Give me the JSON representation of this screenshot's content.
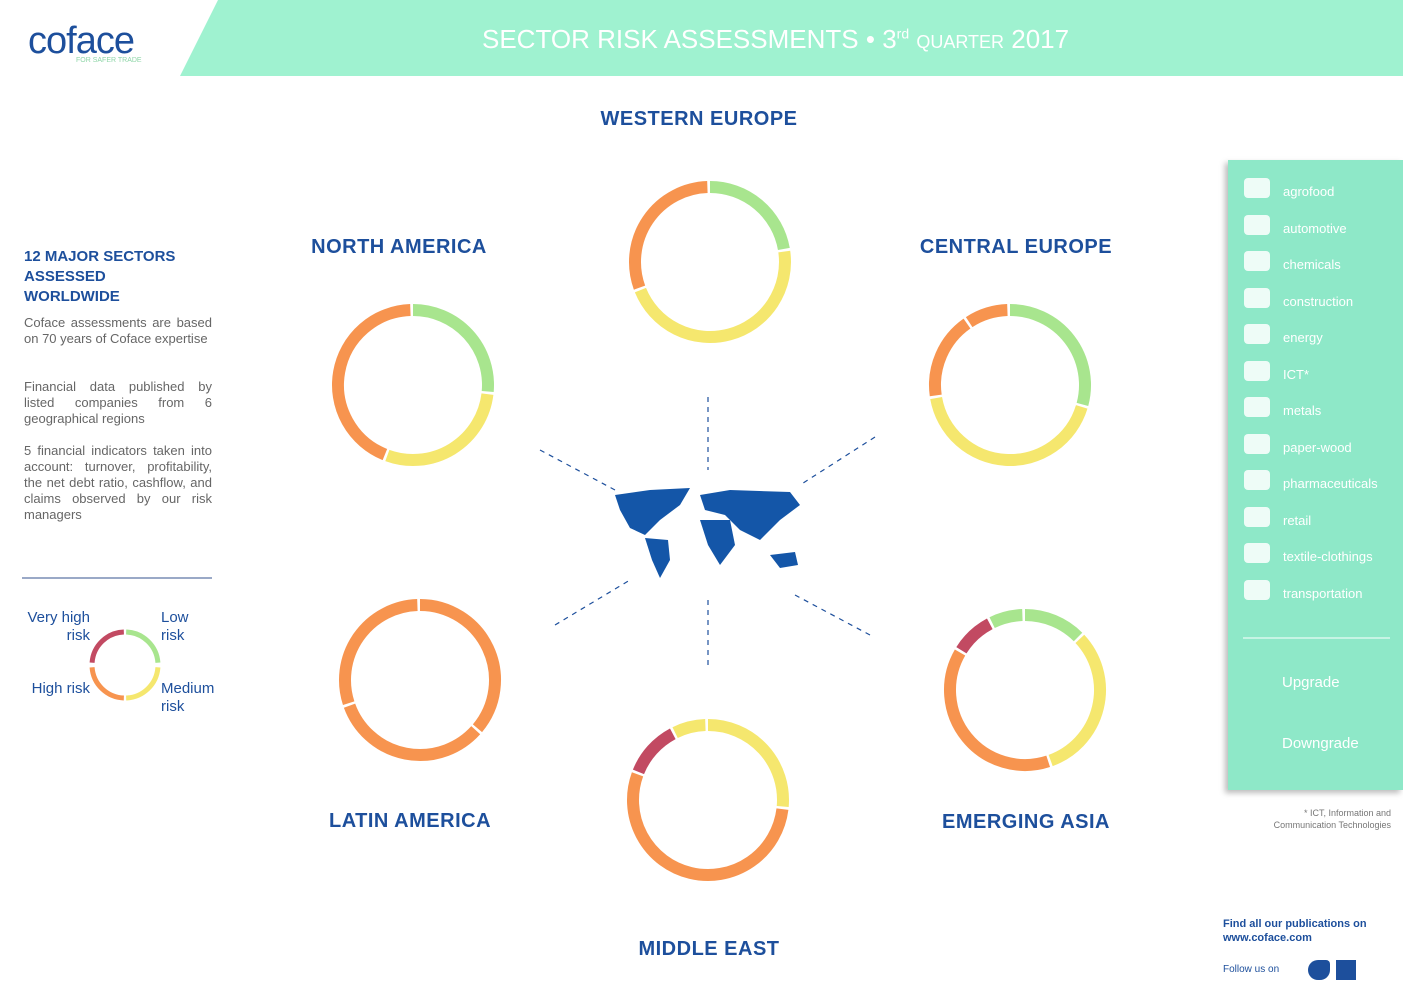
{
  "header": {
    "logo": "coface",
    "tagline": "FOR SAFER TRADE",
    "title": "SECTOR RISK ASSESSMENTS •",
    "title_sup_number": "3",
    "title_sup": "rd",
    "title_quarter": "QUARTER",
    "title_year": "2017"
  },
  "intro": {
    "heading": "12 MAJOR SECTORS ASSESSED WORLDWIDE",
    "paragraphs": [
      "Coface assessments are based on 70 years of Coface expertise",
      "Financial data published by listed companies from 6 geographical regions",
      "5 financial indicators taken into account: turnover, profitability, the net debt ratio, cashflow, and claims observed by our risk managers"
    ]
  },
  "legend": {
    "very_high": "Very high risk",
    "low": "Low risk",
    "high": "High risk",
    "medium": "Medium risk"
  },
  "regions": {
    "western_europe": "WESTERN EUROPE",
    "north_america": "NORTH AMERICA",
    "central_europe": "CENTRAL EUROPE",
    "latin_america": "LATIN AMERICA",
    "middle_east": "MIDDLE EAST",
    "emerging_asia": "EMERGING ASIA"
  },
  "sectors": [
    "agrofood",
    "automotive",
    "chemicals",
    "construction",
    "energy",
    "ICT*",
    "metals",
    "paper-wood",
    "pharmaceuticals",
    "retail",
    "textile-clothings",
    "transportation"
  ],
  "arrows": {
    "upgrade": "Upgrade",
    "downgrade": "Downgrade"
  },
  "footnote": "* ICT, Information and Communication Technologies",
  "footer": {
    "publications": "Find all our publications on",
    "website": "www.coface.com",
    "follow": "Follow us on"
  }
}
